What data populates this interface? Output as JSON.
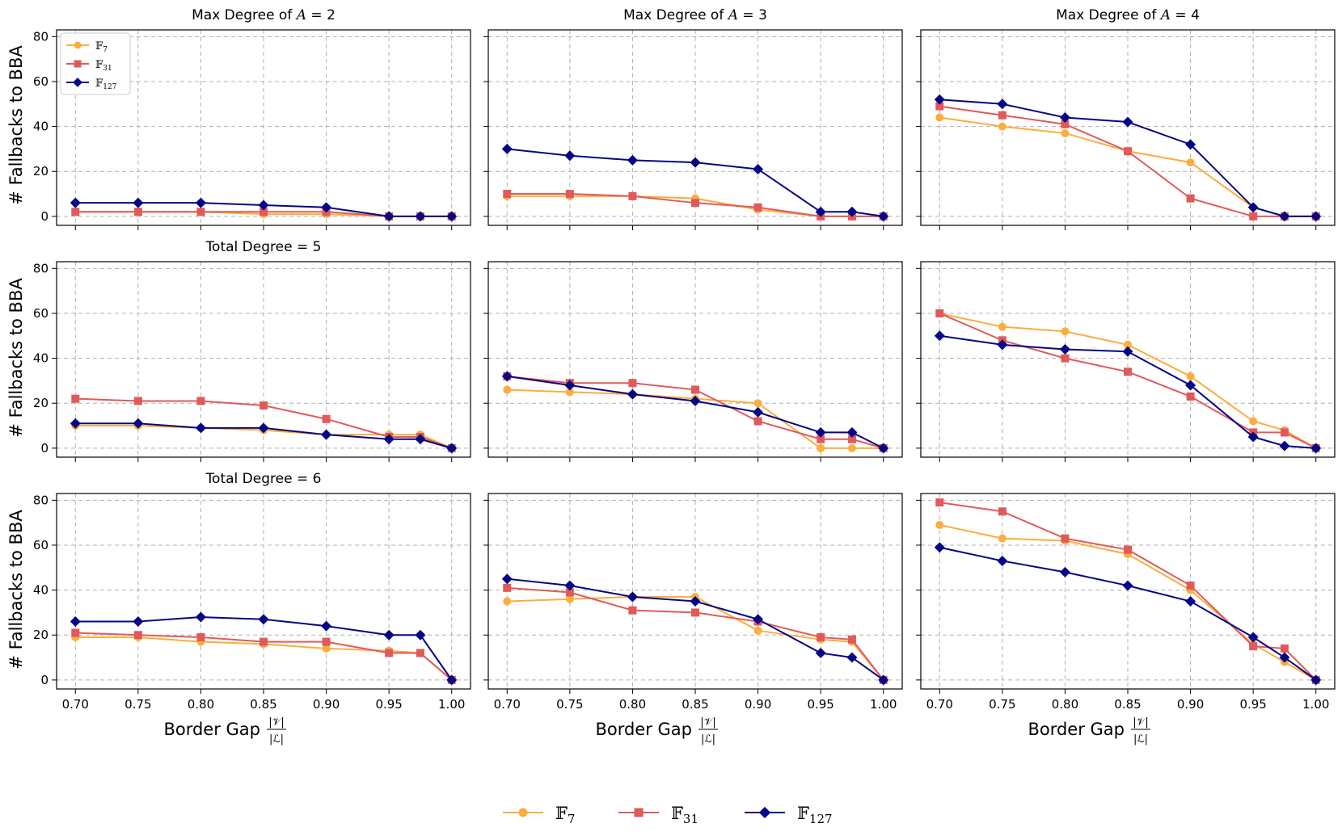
{
  "figure": {
    "xlabel_text": "Border Gap",
    "xlabel_frac_num": "|𝒱|",
    "xlabel_frac_den": "|ℒ|",
    "ylabel": "# Fallbacks to BBA",
    "bottom_legend": [
      {
        "base": "𝔽",
        "sub": "7"
      },
      {
        "base": "𝔽",
        "sub": "31"
      },
      {
        "base": "𝔽",
        "sub": "127"
      }
    ]
  },
  "chart_data": {
    "type": "line",
    "grid": true,
    "xlim": [
      0.685,
      1.015
    ],
    "ylim": [
      -4,
      83
    ],
    "xticks": [
      "0.70",
      "0.75",
      "0.80",
      "0.85",
      "0.90",
      "0.95",
      "1.00"
    ],
    "yticks": [
      "0",
      "20",
      "40",
      "60",
      "80"
    ],
    "x": [
      0.7,
      0.75,
      0.8,
      0.85,
      0.9,
      0.95,
      0.975,
      1.0
    ],
    "legend_position": "top-left of first panel; bottom center of figure",
    "series_styles": [
      {
        "name": "𝔽7",
        "color": "#fbad3d",
        "marker": "circle"
      },
      {
        "name": "𝔽31",
        "color": "#e05a5a",
        "marker": "square"
      },
      {
        "name": "𝔽127",
        "color": "#050586",
        "marker": "diamond"
      }
    ],
    "panels": [
      {
        "title_pre": "Max Degree of ",
        "title_var": "A",
        "title_post": " = 2",
        "series": [
          [
            2,
            2,
            2,
            1,
            1,
            0,
            0,
            0
          ],
          [
            2,
            2,
            2,
            2,
            2,
            0,
            0,
            0
          ],
          [
            6,
            6,
            6,
            5,
            4,
            0,
            0,
            0
          ]
        ]
      },
      {
        "title_pre": "Max Degree of ",
        "title_var": "A",
        "title_post": " = 3",
        "series": [
          [
            9,
            9,
            9,
            8,
            3,
            0,
            0,
            0
          ],
          [
            10,
            10,
            9,
            6,
            4,
            0,
            0,
            0
          ],
          [
            30,
            27,
            25,
            24,
            21,
            2,
            2,
            0
          ]
        ]
      },
      {
        "title_pre": "Max Degree of ",
        "title_var": "A",
        "title_post": " = 4",
        "series": [
          [
            44,
            40,
            37,
            29,
            24,
            4,
            0,
            0
          ],
          [
            49,
            45,
            41,
            29,
            8,
            0,
            0,
            0
          ],
          [
            52,
            50,
            44,
            42,
            32,
            4,
            0,
            0
          ]
        ]
      },
      {
        "title_pre": "Total Degree = 5",
        "title_var": "",
        "title_post": "",
        "series": [
          [
            10,
            10,
            9,
            8,
            6,
            6,
            6,
            0
          ],
          [
            22,
            21,
            21,
            19,
            13,
            5,
            5,
            0
          ],
          [
            11,
            11,
            9,
            9,
            6,
            4,
            4,
            0
          ]
        ]
      },
      {
        "title_pre": "",
        "title_var": "",
        "title_post": "",
        "series": [
          [
            26,
            25,
            24,
            22,
            20,
            0,
            0,
            0
          ],
          [
            32,
            29,
            29,
            26,
            12,
            4,
            4,
            0
          ],
          [
            32,
            28,
            24,
            21,
            16,
            7,
            7,
            0
          ]
        ]
      },
      {
        "title_pre": "",
        "title_var": "",
        "title_post": "",
        "series": [
          [
            60,
            54,
            52,
            46,
            32,
            12,
            8,
            0
          ],
          [
            60,
            48,
            40,
            34,
            23,
            7,
            7,
            0
          ],
          [
            50,
            46,
            44,
            43,
            28,
            5,
            1,
            0
          ]
        ]
      },
      {
        "title_pre": "Total Degree = 6",
        "title_var": "",
        "title_post": "",
        "series": [
          [
            19,
            19,
            17,
            16,
            14,
            13,
            12,
            0
          ],
          [
            21,
            20,
            19,
            17,
            17,
            12,
            12,
            0
          ],
          [
            26,
            26,
            28,
            27,
            24,
            20,
            20,
            0
          ]
        ]
      },
      {
        "title_pre": "",
        "title_var": "",
        "title_post": "",
        "series": [
          [
            35,
            36,
            37,
            37,
            22,
            18,
            17,
            0
          ],
          [
            41,
            39,
            31,
            30,
            26,
            19,
            18,
            0
          ],
          [
            45,
            42,
            37,
            35,
            27,
            12,
            10,
            0
          ]
        ]
      },
      {
        "title_pre": "",
        "title_var": "",
        "title_post": "",
        "series": [
          [
            69,
            63,
            62,
            56,
            40,
            16,
            8,
            0
          ],
          [
            79,
            75,
            63,
            58,
            42,
            15,
            14,
            0
          ],
          [
            59,
            53,
            48,
            42,
            35,
            19,
            10,
            0
          ]
        ]
      }
    ]
  }
}
